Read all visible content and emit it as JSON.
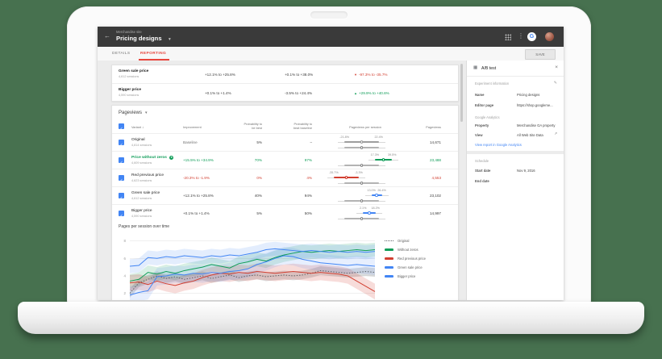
{
  "icons": {
    "back": "←",
    "caret_down": "▾",
    "kebab": "⋮",
    "sort_down": "↓",
    "check": "✓",
    "close": "×",
    "edit": "✎",
    "external": "↗",
    "arrow_up": "▲",
    "arrow_down": "▼",
    "badge_star": "★",
    "panel_grid": "▦",
    "google_g": "G"
  },
  "appbar": {
    "site_label": "Merchandise site",
    "experiment_name": "Pricing designs"
  },
  "tabbar": {
    "details": "DETAILS",
    "reporting": "REPORTING",
    "save": "SAVE"
  },
  "objective_card": {
    "rows": [
      {
        "name": "Green sale price",
        "sessions": "4,612 sessions",
        "range_a": "+12.1% to +25.8%",
        "range_b": "+0.1% to +38.0%",
        "range_c": "-97.3% to -35.7%",
        "direction": "down"
      },
      {
        "name": "Bigger price",
        "sessions": "4,590 sessions",
        "range_a": "+0.1% to +1.4%",
        "range_b": "-3.5% to +24.4%",
        "range_c": "+29.9% to +40.6%",
        "direction": "up"
      }
    ]
  },
  "pageviews_card": {
    "metric_label": "Pageviews",
    "columns": {
      "variant": "Variant",
      "improvement": "Improvement",
      "best": [
        "Probability to",
        "be best"
      ],
      "beat": [
        "Probability to",
        "beat baseline"
      ],
      "per_session": "Pageviews per session",
      "pageviews": "Pageviews"
    },
    "baseline_range": {
      "lo": -21.8,
      "hi": 22.4
    },
    "rows": [
      {
        "name": "Original",
        "sessions": "4,814 sessions",
        "improvement": "Baseline",
        "best": "5%",
        "beat": "–",
        "pageviews": "14,671",
        "range": {
          "lo": -21.8,
          "hi": 22.4,
          "lo_label": "-21.8%",
          "hi_label": "22.4%",
          "color": "#9e9e9e"
        }
      },
      {
        "name": "Price without zeros",
        "sessions": "4,609 sessions",
        "improvement": "+15.5% to +34.9%",
        "best": "70%",
        "beat": "97%",
        "pageviews": "23,488",
        "range": {
          "lo": 17.3,
          "hi": 39.5,
          "lo_label": "17.3%",
          "hi_label": "39.5%",
          "color": "#0f9d58"
        }
      },
      {
        "name": "Red previous price",
        "sessions": "4,623 sessions",
        "improvement": "-20.3% to -1.9%",
        "best": "0%",
        "beat": "4%",
        "pageviews": "4,553",
        "range": {
          "lo": -35.7,
          "hi": -3.3,
          "lo_label": "-35.7%",
          "hi_label": "-3.3%",
          "color": "#d23f31"
        }
      },
      {
        "name": "Green sale price",
        "sessions": "4,612 sessions",
        "improvement": "+12.1% to +25.8%",
        "best": "40%",
        "beat": "94%",
        "pageviews": "23,102",
        "range": {
          "lo": 13.0,
          "hi": 26.4,
          "lo_label": "13.0%",
          "hi_label": "26.4%",
          "color": "#4285f4"
        }
      },
      {
        "name": "Bigger price",
        "sessions": "4,590 sessions",
        "improvement": "+0.1% to +1.4%",
        "best": "5%",
        "beat": "50%",
        "pageviews": "14,997",
        "range": {
          "lo": 2.1,
          "hi": 18.2,
          "lo_label": "2.1%",
          "hi_label": "18.2%",
          "color": "#4285f4"
        }
      }
    ]
  },
  "chart_data": {
    "type": "line",
    "title": "Pages per session over time",
    "xlabel": "",
    "ylabel": "",
    "ylim": [
      1.5,
      8.8
    ],
    "yticks": [
      2,
      4,
      6,
      8
    ],
    "grid": true,
    "legend_position": "right",
    "x": [
      1,
      2,
      3,
      4,
      5,
      6,
      7,
      8,
      9,
      10,
      11,
      12,
      13,
      14,
      15,
      16,
      17,
      18,
      19,
      20,
      21,
      22,
      23,
      24,
      25,
      26,
      27,
      28
    ],
    "series": [
      {
        "name": "Original",
        "color": "#5f6368",
        "style": "dotted",
        "ci": 0.5,
        "band_opacity": 0.22,
        "values": [
          2.0,
          3.2,
          3.6,
          4.0,
          3.7,
          3.9,
          3.6,
          3.8,
          4.0,
          3.7,
          3.9,
          4.1,
          3.8,
          4.0,
          4.1,
          3.9,
          4.0,
          4.1,
          4.0,
          4.1,
          4.3,
          4.6,
          4.5,
          4.4,
          4.3,
          4.4,
          4.5,
          4.4
        ]
      },
      {
        "name": "Without zeros",
        "color": "#0f9d58",
        "style": "solid",
        "ci": 0.8,
        "band_opacity": 0.16,
        "values": [
          3.4,
          3.6,
          4.4,
          4.2,
          4.5,
          4.3,
          4.6,
          4.8,
          5.0,
          5.3,
          5.1,
          4.9,
          5.4,
          5.6,
          5.9,
          5.7,
          6.1,
          6.4,
          6.6,
          6.8,
          6.7,
          6.8,
          6.9,
          6.8,
          6.9,
          7.0,
          6.9,
          7.0
        ]
      },
      {
        "name": "Red previous price",
        "color": "#d23f31",
        "style": "solid",
        "ci": 0.9,
        "band_opacity": 0.18,
        "values": [
          3.2,
          3.3,
          3.0,
          3.4,
          3.1,
          2.9,
          3.2,
          3.4,
          3.8,
          4.1,
          4.3,
          4.2,
          4.4,
          4.3,
          4.5,
          4.4,
          4.3,
          4.4,
          4.5,
          4.4,
          4.3,
          4.4,
          4.3,
          4.2,
          4.0,
          3.4,
          2.8,
          2.2
        ]
      },
      {
        "name": "Green sale price",
        "color": "#4285f4",
        "style": "solid",
        "ci": 0.8,
        "band_opacity": 0.15,
        "values": [
          5.1,
          5.2,
          6.1,
          6.0,
          6.2,
          6.1,
          6.3,
          6.2,
          6.1,
          6.3,
          6.2,
          6.4,
          6.3,
          6.5,
          6.7,
          7.0,
          7.1,
          7.0,
          6.9,
          6.8,
          6.9,
          6.8,
          6.7,
          6.8,
          6.7,
          6.8,
          6.7,
          6.8
        ]
      },
      {
        "name": "Bigger price",
        "color": "#4285f4",
        "style": "solid",
        "ci": 1.0,
        "band_opacity": 0.13,
        "values": [
          1.8,
          2.1,
          2.3,
          3.9,
          4.0,
          4.2,
          4.1,
          4.3,
          4.2,
          4.4,
          4.3,
          4.5,
          4.6,
          4.8,
          5.3,
          5.6,
          6.0,
          6.3,
          6.2,
          5.9,
          5.7,
          5.5,
          5.4,
          5.3,
          5.2,
          5.3,
          5.2,
          5.1
        ]
      }
    ]
  },
  "sidebar": {
    "panel_title": "A/B test",
    "experiment_info_label": "Experiment information",
    "name_label": "Name",
    "name_value": "Pricing designs",
    "editor_label": "Editor page",
    "editor_value": "https://shop.googleme...",
    "ga_section_label": "Google Analytics",
    "property_label": "Property",
    "property_value": "Merchandise GA property",
    "view_label": "View",
    "view_value": "All Web Site Data",
    "report_link": "View report in Google Analytics",
    "schedule_label": "Schedule",
    "start_label": "Start date",
    "start_value": "Nov 9, 2016",
    "end_label": "End date"
  },
  "colors": {
    "background": "#47714f",
    "appbar": "#3a3a3a",
    "tab_active": "#e8453c",
    "positive": "#0f9d58",
    "negative": "#d23f31",
    "link": "#4285f4",
    "checkbox": "#4285f4"
  }
}
